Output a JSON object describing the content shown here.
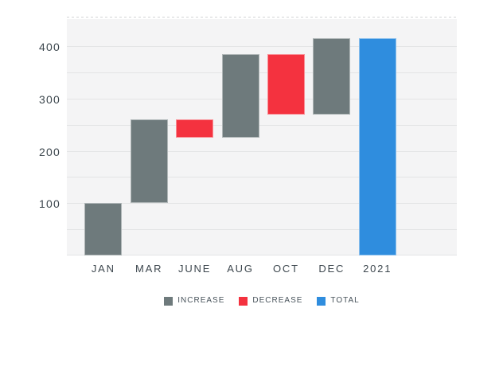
{
  "chart_data": {
    "type": "bar",
    "subtype": "waterfall",
    "title": "",
    "xlabel": "",
    "ylabel": "",
    "categories": [
      "JAN",
      "MAR",
      "JUNE",
      "AUG",
      "OCT",
      "DEC",
      "2021"
    ],
    "series": [
      {
        "category": "JAN",
        "kind": "increase",
        "start": 0,
        "end": 100,
        "delta": 100
      },
      {
        "category": "MAR",
        "kind": "increase",
        "start": 100,
        "end": 260,
        "delta": 160
      },
      {
        "category": "JUNE",
        "kind": "decrease",
        "start": 260,
        "end": 225,
        "delta": -35
      },
      {
        "category": "AUG",
        "kind": "increase",
        "start": 225,
        "end": 385,
        "delta": 160
      },
      {
        "category": "OCT",
        "kind": "decrease",
        "start": 385,
        "end": 270,
        "delta": -115
      },
      {
        "category": "DEC",
        "kind": "increase",
        "start": 270,
        "end": 415,
        "delta": 145
      },
      {
        "category": "2021",
        "kind": "total",
        "start": 0,
        "end": 415,
        "delta": 415
      }
    ],
    "yticks": [
      100,
      200,
      300,
      400
    ],
    "ylim": [
      0,
      452
    ],
    "grid": "on",
    "grid_step": 50,
    "legend_position": "bottom",
    "legend": [
      {
        "label": "INCREASE",
        "kind": "increase",
        "color": "#6e7a7c"
      },
      {
        "label": "DECREASE",
        "kind": "decrease",
        "color": "#f4323f"
      },
      {
        "label": "TOTAL",
        "kind": "total",
        "color": "#2f8dde"
      }
    ],
    "colors": {
      "increase": "#6e7a7c",
      "decrease": "#f4323f",
      "total": "#2f8dde"
    }
  },
  "style": {
    "plot_background": "#f4f4f5",
    "grid_color": "#e3e4e5",
    "dashed_top_color": "#d2d4d5",
    "axis_text_color": "#3d474e",
    "legend_text_color": "#47525a",
    "bar_stroke": "rgba(255,255,255,0.45)"
  }
}
